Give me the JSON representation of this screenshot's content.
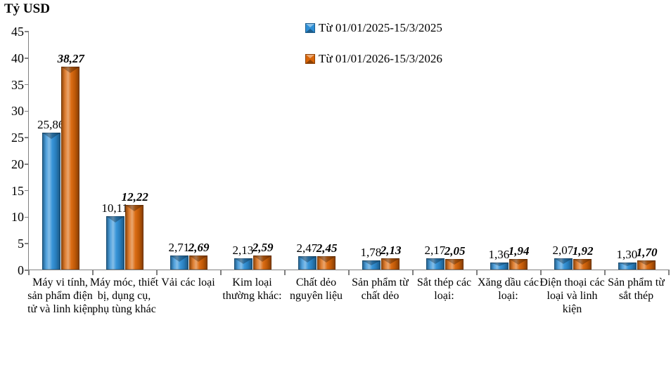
{
  "chart_data": {
    "type": "bar",
    "ylabel": "Tỷ USD",
    "xlabel": "",
    "grid": false,
    "legend_position": "top-center",
    "ylim": [
      0,
      45
    ],
    "yticks": [
      0,
      5,
      10,
      15,
      20,
      25,
      30,
      35,
      40,
      45
    ],
    "categories": [
      "Máy vi tính, sản phẩm điện tử và linh kiện",
      "Máy móc, thiết bị, dụng cụ, phụ tùng khác",
      "Vải các loại",
      "Kim loại thường khác:",
      "Chất dẻo nguyên liệu",
      "Sản phẩm từ chất dẻo",
      "Sắt thép các loại:",
      "Xăng dầu các loại:",
      "Điện thoại các loại và linh kiện",
      "Sản phẩm từ sắt thép"
    ],
    "series": [
      {
        "name": "Từ 01/01/2025-15/3/2025",
        "color": "#2e8fd6",
        "values": [
          25.86,
          10.11,
          2.71,
          2.13,
          2.47,
          1.78,
          2.17,
          1.36,
          2.07,
          1.3
        ],
        "labels": [
          "25,86",
          "10,11",
          "2,71",
          "2,13",
          "2,47",
          "1,78",
          "2,17",
          "1,36",
          "2,07",
          "1,30"
        ]
      },
      {
        "name": "Từ 01/01/2026-15/3/2026",
        "color": "#d96508",
        "values": [
          38.27,
          12.22,
          2.69,
          2.59,
          2.45,
          2.13,
          2.05,
          1.94,
          1.92,
          1.7
        ],
        "labels": [
          "38,27",
          "12,22",
          "2,69",
          "2,59",
          "2,45",
          "2,13",
          "2,05",
          "1,94",
          "1,92",
          "1,70"
        ]
      }
    ]
  }
}
